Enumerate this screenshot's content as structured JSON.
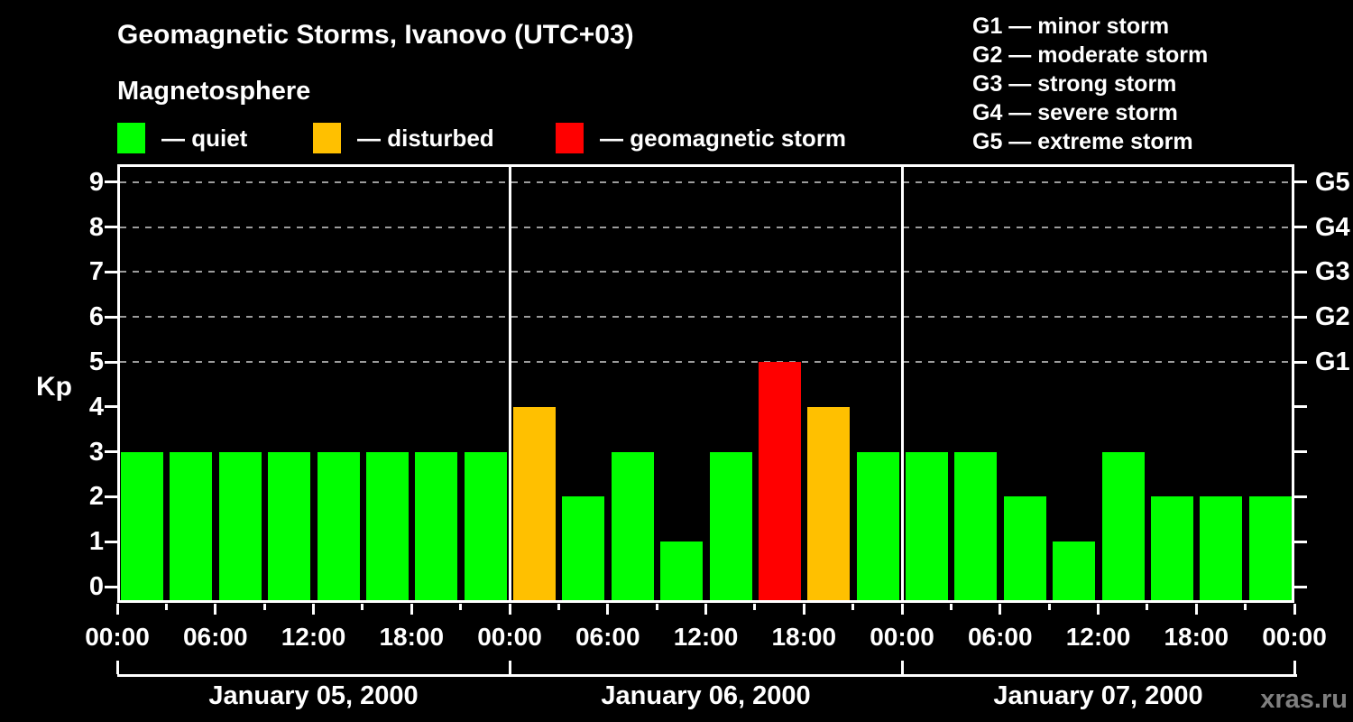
{
  "title": "Geomagnetic Storms, Ivanovo (UTC+03)",
  "magnetosphere_legend": {
    "heading": "Magnetosphere",
    "items": [
      {
        "name": "quiet",
        "label": "— quiet",
        "color": "#00ff00"
      },
      {
        "name": "disturbed",
        "label": "— disturbed",
        "color": "#ffc000"
      },
      {
        "name": "storm",
        "label": "— geomagnetic storm",
        "color": "#ff0000"
      }
    ]
  },
  "storm_scale_legend": [
    {
      "code": "G1",
      "text": "G1 — minor storm"
    },
    {
      "code": "G2",
      "text": "G2 — moderate storm"
    },
    {
      "code": "G3",
      "text": "G3 — strong storm"
    },
    {
      "code": "G4",
      "text": "G4 — severe storm"
    },
    {
      "code": "G5",
      "text": "G5 — extreme storm"
    }
  ],
  "watermark": "xras.ru",
  "colors": {
    "background": "#000000",
    "axis": "#ffffff",
    "grid": "#9c9c9c",
    "watermark": "#7f7f7f"
  },
  "chart_data": {
    "type": "bar",
    "title": "Geomagnetic Storms, Ivanovo (UTC+03)",
    "ylabel": "Kp",
    "ylim": [
      0,
      9
    ],
    "yticks": [
      0,
      1,
      2,
      3,
      4,
      5,
      6,
      7,
      8,
      9
    ],
    "grid_levels_kp": [
      5,
      6,
      7,
      8,
      9
    ],
    "right_axis_labels": [
      {
        "kp": 5,
        "label": "G1"
      },
      {
        "kp": 6,
        "label": "G2"
      },
      {
        "kp": 7,
        "label": "G3"
      },
      {
        "kp": 8,
        "label": "G4"
      },
      {
        "kp": 9,
        "label": "G5"
      }
    ],
    "hours_per_bar": 3,
    "time_tick_labels": [
      "00:00",
      "06:00",
      "12:00",
      "18:00"
    ],
    "closing_time_label": "00:00",
    "status_colors": {
      "quiet": "#00ff00",
      "disturbed": "#ffc000",
      "storm": "#ff0000"
    },
    "days": [
      {
        "date": "January 05, 2000",
        "kp": [
          3,
          3,
          3,
          3,
          3,
          3,
          3,
          3
        ],
        "status": [
          "quiet",
          "quiet",
          "quiet",
          "quiet",
          "quiet",
          "quiet",
          "quiet",
          "quiet"
        ]
      },
      {
        "date": "January 06, 2000",
        "kp": [
          4,
          2,
          3,
          1,
          3,
          5,
          4,
          3
        ],
        "status": [
          "disturbed",
          "quiet",
          "quiet",
          "quiet",
          "quiet",
          "storm",
          "disturbed",
          "quiet"
        ]
      },
      {
        "date": "January 07, 2000",
        "kp": [
          3,
          3,
          2,
          1,
          3,
          2,
          2,
          2
        ],
        "status": [
          "quiet",
          "quiet",
          "quiet",
          "quiet",
          "quiet",
          "quiet",
          "quiet",
          "quiet"
        ]
      }
    ]
  }
}
